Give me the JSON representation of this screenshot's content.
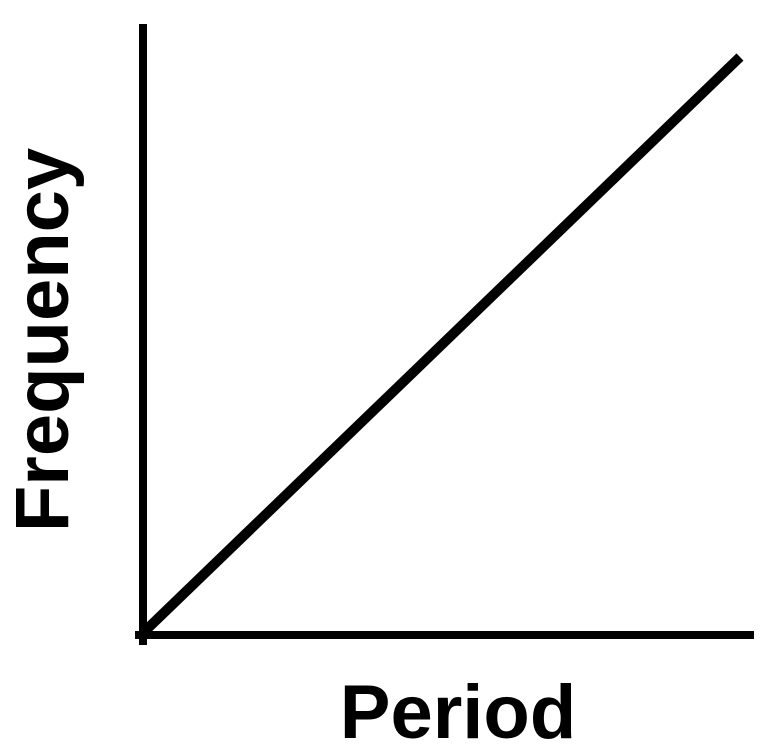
{
  "chart_data": {
    "type": "line",
    "title": "",
    "xlabel": "Period",
    "ylabel": "Frequency",
    "x": [
      0,
      1
    ],
    "series": [
      {
        "values": [
          0,
          1
        ]
      }
    ],
    "xlim": [
      0,
      1
    ],
    "ylim": [
      0,
      1
    ],
    "grid": false,
    "ticks": false,
    "color": "#000000"
  }
}
